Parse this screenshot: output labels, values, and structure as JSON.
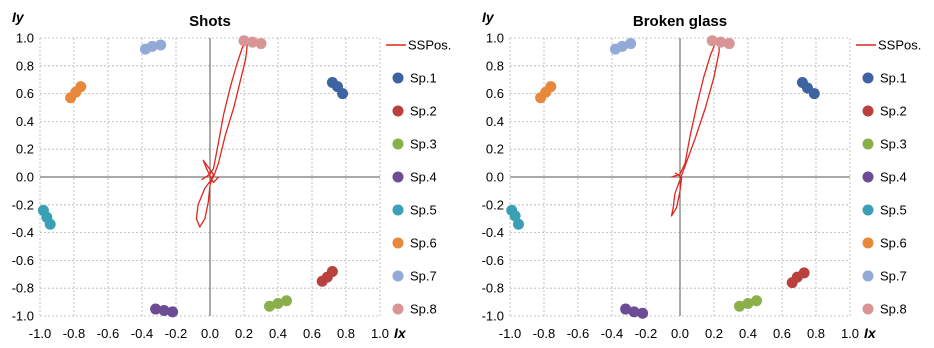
{
  "chart_data": [
    {
      "type": "scatter",
      "title": "Shots",
      "xlabel": "Ix",
      "ylabel": "Iy",
      "xlim": [
        -1.0,
        1.0
      ],
      "ylim": [
        -1.0,
        1.0
      ],
      "xticks": [
        "-1.0",
        "-0.8",
        "-0.6",
        "-0.4",
        "-0.2",
        "0.0",
        "0.2",
        "0.4",
        "0.6",
        "0.8",
        "1.0"
      ],
      "yticks": [
        "1.0",
        "0.8",
        "0.6",
        "0.4",
        "0.2",
        "0.0",
        "-0.2",
        "-0.4",
        "-0.6",
        "-0.8",
        "-1.0"
      ],
      "grid": true,
      "legend_position": "right",
      "line_series": {
        "name": "SSPos.",
        "color": "#e0261f",
        "points": [
          [
            -0.05,
            -0.02
          ],
          [
            0.0,
            0.02
          ],
          [
            0.02,
            0.06
          ],
          [
            0.03,
            0.12
          ],
          [
            0.05,
            0.25
          ],
          [
            0.08,
            0.45
          ],
          [
            0.12,
            0.65
          ],
          [
            0.16,
            0.82
          ],
          [
            0.19,
            0.93
          ],
          [
            0.21,
            0.98
          ],
          [
            0.22,
            0.96
          ],
          [
            0.21,
            0.85
          ],
          [
            0.18,
            0.7
          ],
          [
            0.14,
            0.5
          ],
          [
            0.09,
            0.3
          ],
          [
            0.05,
            0.1
          ],
          [
            0.02,
            0.0
          ],
          [
            -0.03,
            -0.08
          ],
          [
            -0.07,
            -0.2
          ],
          [
            -0.08,
            -0.3
          ],
          [
            -0.06,
            -0.36
          ],
          [
            -0.03,
            -0.3
          ],
          [
            -0.01,
            -0.18
          ],
          [
            0.0,
            -0.06
          ],
          [
            0.02,
            0.02
          ],
          [
            -0.04,
            0.12
          ],
          [
            -0.02,
            0.06
          ],
          [
            0.02,
            -0.04
          ],
          [
            0.05,
            0.0
          ]
        ]
      },
      "series": [
        {
          "name": "Sp.1",
          "color": "#3d63a2",
          "points": [
            [
              0.72,
              0.68
            ],
            [
              0.75,
              0.65
            ],
            [
              0.78,
              0.6
            ]
          ]
        },
        {
          "name": "Sp.2",
          "color": "#b8403d",
          "points": [
            [
              0.66,
              -0.75
            ],
            [
              0.69,
              -0.72
            ],
            [
              0.72,
              -0.68
            ]
          ]
        },
        {
          "name": "Sp.3",
          "color": "#8bb04a",
          "points": [
            [
              0.35,
              -0.93
            ],
            [
              0.4,
              -0.91
            ],
            [
              0.45,
              -0.89
            ]
          ]
        },
        {
          "name": "Sp.4",
          "color": "#6d4c96",
          "points": [
            [
              -0.32,
              -0.95
            ],
            [
              -0.27,
              -0.96
            ],
            [
              -0.22,
              -0.97
            ]
          ]
        },
        {
          "name": "Sp.5",
          "color": "#3aa0b5",
          "points": [
            [
              -0.98,
              -0.24
            ],
            [
              -0.96,
              -0.29
            ],
            [
              -0.94,
              -0.34
            ]
          ]
        },
        {
          "name": "Sp.6",
          "color": "#e8883a",
          "points": [
            [
              -0.82,
              0.57
            ],
            [
              -0.79,
              0.61
            ],
            [
              -0.76,
              0.65
            ]
          ]
        },
        {
          "name": "Sp.7",
          "color": "#93a9d6",
          "points": [
            [
              -0.38,
              0.92
            ],
            [
              -0.34,
              0.94
            ],
            [
              -0.29,
              0.95
            ]
          ]
        },
        {
          "name": "Sp.8",
          "color": "#d99596",
          "points": [
            [
              0.2,
              0.98
            ],
            [
              0.25,
              0.97
            ],
            [
              0.3,
              0.96
            ]
          ]
        }
      ]
    },
    {
      "type": "scatter",
      "title": "Broken glass",
      "xlabel": "Ix",
      "ylabel": "Iy",
      "xlim": [
        -1.0,
        1.0
      ],
      "ylim": [
        -1.0,
        1.0
      ],
      "xticks": [
        "-1.0",
        "-0.8",
        "-0.6",
        "-0.4",
        "-0.2",
        "0.0",
        "0.2",
        "0.4",
        "0.6",
        "0.8",
        "1.0"
      ],
      "yticks": [
        "1.0",
        "0.8",
        "0.6",
        "0.4",
        "0.2",
        "0.0",
        "-0.2",
        "-0.4",
        "-0.6",
        "-0.8",
        "-1.0"
      ],
      "grid": true,
      "legend_position": "right",
      "line_series": {
        "name": "SSPos.",
        "color": "#e0261f",
        "points": [
          [
            -0.05,
            0.0
          ],
          [
            0.0,
            0.02
          ],
          [
            0.03,
            0.1
          ],
          [
            0.06,
            0.3
          ],
          [
            0.1,
            0.52
          ],
          [
            0.14,
            0.72
          ],
          [
            0.18,
            0.88
          ],
          [
            0.21,
            0.97
          ],
          [
            0.23,
            0.99
          ],
          [
            0.23,
            0.9
          ],
          [
            0.2,
            0.72
          ],
          [
            0.15,
            0.5
          ],
          [
            0.09,
            0.28
          ],
          [
            0.03,
            0.08
          ],
          [
            0.0,
            -0.02
          ],
          [
            -0.03,
            -0.12
          ],
          [
            -0.04,
            -0.22
          ],
          [
            -0.05,
            -0.28
          ],
          [
            -0.02,
            -0.22
          ],
          [
            0.0,
            -0.1
          ],
          [
            0.01,
            0.0
          ],
          [
            -0.03,
            0.03
          ]
        ]
      },
      "series": [
        {
          "name": "Sp.1",
          "color": "#3d63a2",
          "points": [
            [
              0.72,
              0.68
            ],
            [
              0.75,
              0.64
            ],
            [
              0.79,
              0.6
            ]
          ]
        },
        {
          "name": "Sp.2",
          "color": "#b8403d",
          "points": [
            [
              0.66,
              -0.76
            ],
            [
              0.69,
              -0.72
            ],
            [
              0.73,
              -0.69
            ]
          ]
        },
        {
          "name": "Sp.3",
          "color": "#8bb04a",
          "points": [
            [
              0.35,
              -0.93
            ],
            [
              0.4,
              -0.91
            ],
            [
              0.45,
              -0.89
            ]
          ]
        },
        {
          "name": "Sp.4",
          "color": "#6d4c96",
          "points": [
            [
              -0.32,
              -0.95
            ],
            [
              -0.27,
              -0.97
            ],
            [
              -0.22,
              -0.98
            ]
          ]
        },
        {
          "name": "Sp.5",
          "color": "#3aa0b5",
          "points": [
            [
              -0.99,
              -0.24
            ],
            [
              -0.97,
              -0.28
            ],
            [
              -0.95,
              -0.34
            ]
          ]
        },
        {
          "name": "Sp.6",
          "color": "#e8883a",
          "points": [
            [
              -0.82,
              0.57
            ],
            [
              -0.79,
              0.61
            ],
            [
              -0.76,
              0.65
            ]
          ]
        },
        {
          "name": "Sp.7",
          "color": "#93a9d6",
          "points": [
            [
              -0.38,
              0.92
            ],
            [
              -0.34,
              0.94
            ],
            [
              -0.29,
              0.96
            ]
          ]
        },
        {
          "name": "Sp.8",
          "color": "#d99596",
          "points": [
            [
              0.19,
              0.98
            ],
            [
              0.24,
              0.97
            ],
            [
              0.29,
              0.96
            ]
          ]
        }
      ]
    }
  ]
}
